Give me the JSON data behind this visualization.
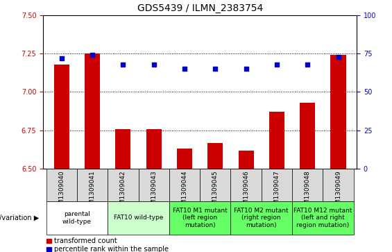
{
  "title": "GDS5439 / ILMN_2383754",
  "samples": [
    "GSM1309040",
    "GSM1309041",
    "GSM1309042",
    "GSM1309043",
    "GSM1309044",
    "GSM1309045",
    "GSM1309046",
    "GSM1309047",
    "GSM1309048",
    "GSM1309049"
  ],
  "transformed_count": [
    7.18,
    7.25,
    6.76,
    6.76,
    6.63,
    6.67,
    6.62,
    6.87,
    6.93,
    7.24
  ],
  "percentile_rank": [
    72,
    74,
    68,
    68,
    65,
    65,
    65,
    68,
    68,
    73
  ],
  "ylim_left": [
    6.5,
    7.5
  ],
  "ylim_right": [
    0,
    100
  ],
  "yticks_left": [
    6.5,
    6.75,
    7.0,
    7.25,
    7.5
  ],
  "yticks_right": [
    0,
    25,
    50,
    75,
    100
  ],
  "bar_color": "#cc0000",
  "dot_color": "#0000cc",
  "bar_width": 0.5,
  "grid_lines": [
    6.75,
    7.0,
    7.25
  ],
  "groups": [
    {
      "label": "parental\nwild-type",
      "start": 0,
      "end": 1,
      "color": "#ffffff"
    },
    {
      "label": "FAT10 wild-type",
      "start": 2,
      "end": 3,
      "color": "#ccffcc"
    },
    {
      "label": "FAT10 M1 mutant\n(left region\nmutation)",
      "start": 4,
      "end": 5,
      "color": "#66ff66"
    },
    {
      "label": "FAT10 M2 mutant\n(right region\nmutation)",
      "start": 6,
      "end": 7,
      "color": "#66ff66"
    },
    {
      "label": "FAT10 M12 mutant\n(left and right\nregion mutation)",
      "start": 8,
      "end": 9,
      "color": "#66ff66"
    }
  ],
  "legend_red": "transformed count",
  "legend_blue": "percentile rank within the sample",
  "tick_label_color_left": "#cc0000",
  "tick_label_color_right": "#0000cc",
  "title_fontsize": 10,
  "tick_fontsize": 7,
  "sample_label_fontsize": 6.5,
  "group_label_fontsize": 6.5,
  "legend_fontsize": 7,
  "genotype_label": "genotype/variation",
  "sample_row_color": "#d9d9d9"
}
